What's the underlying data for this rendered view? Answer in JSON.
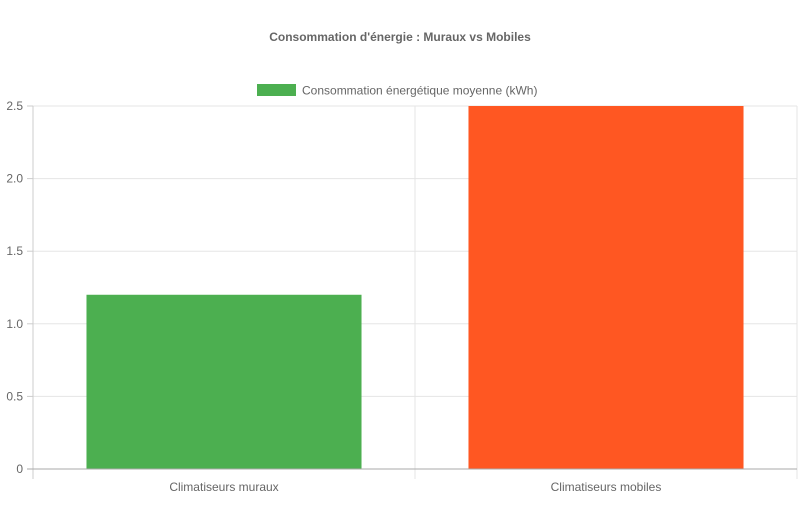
{
  "chart_data": {
    "type": "bar",
    "title": "Consommation d'énergie : Muraux vs Mobiles",
    "categories": [
      "Climatiseurs muraux",
      "Climatiseurs mobiles"
    ],
    "series": [
      {
        "name": "Consommation énergétique moyenne (kWh)",
        "values": [
          1.2,
          2.5
        ],
        "colors": [
          "#4CAF50",
          "#FF5722"
        ]
      }
    ],
    "legend": {
      "position": "top",
      "swatch_color": "#4CAF50"
    },
    "ylim": [
      0,
      2.5
    ],
    "yticks": [
      "0",
      "0.5",
      "1.0",
      "1.5",
      "2.0",
      "2.5"
    ],
    "grid": true
  }
}
